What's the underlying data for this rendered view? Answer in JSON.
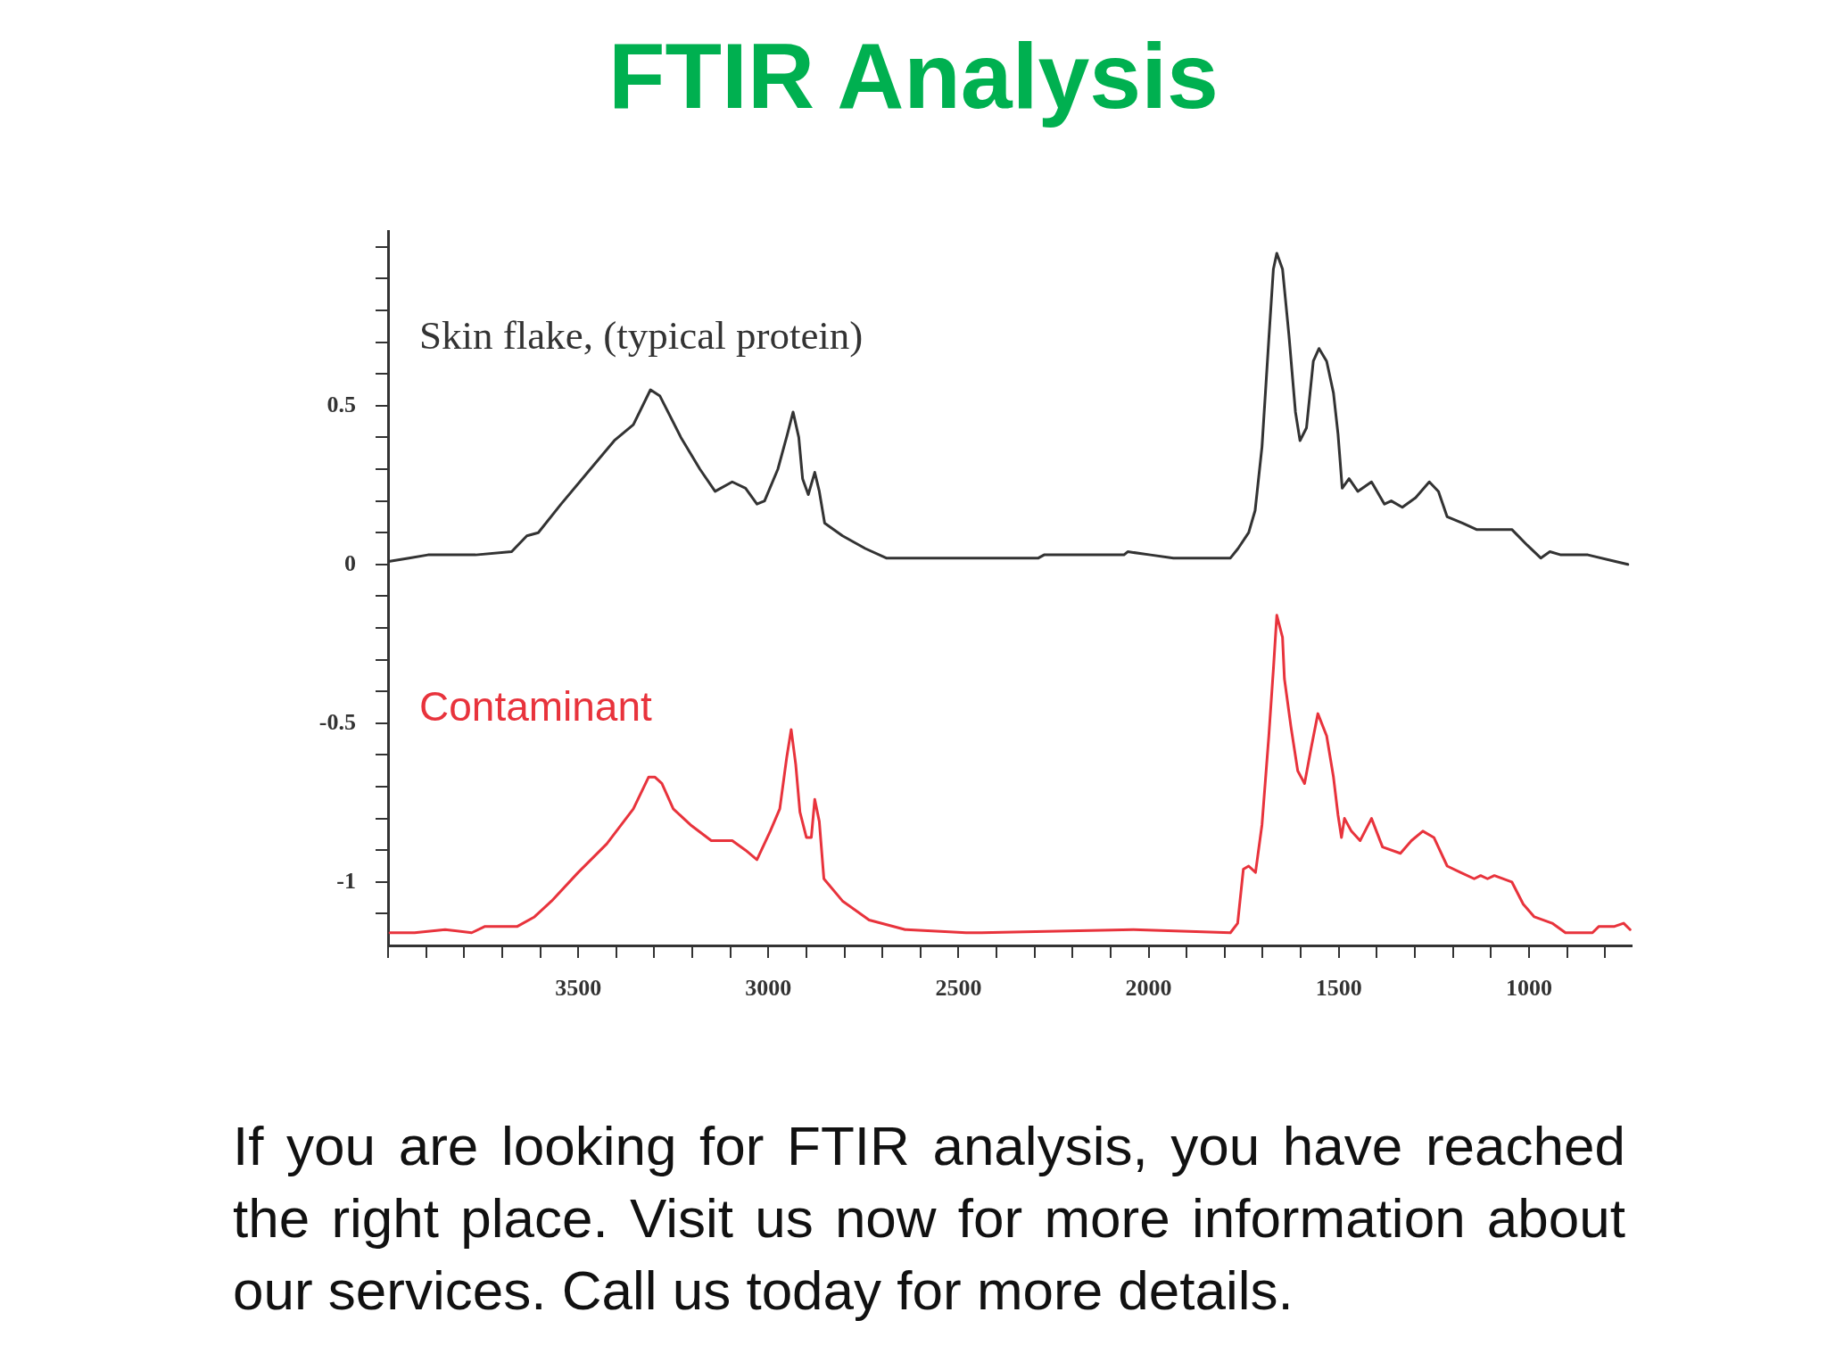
{
  "chart_data": {
    "type": "line",
    "title": "FTIR Analysis",
    "annotations": [
      "If you are looking for FTIR analysis, you have reached the right place. Visit us now for more information about our services. Call us today for more details."
    ],
    "xlim": [
      4000,
      730
    ],
    "ylim": [
      -1.2,
      1.05
    ],
    "xticks": [
      {
        "value": 4000,
        "label": null
      },
      {
        "value": 3900,
        "label": null
      },
      {
        "value": 3800,
        "label": null
      },
      {
        "value": 3700,
        "label": null
      },
      {
        "value": 3600,
        "label": null
      },
      3500,
      {
        "value": 3400,
        "label": null
      },
      {
        "value": 3300,
        "label": null
      },
      {
        "value": 3200,
        "label": null
      },
      {
        "value": 3100,
        "label": null
      },
      3000,
      {
        "value": 2900,
        "label": null
      },
      {
        "value": 2800,
        "label": null
      },
      {
        "value": 2700,
        "label": null
      },
      {
        "value": 2600,
        "label": null
      },
      2500,
      {
        "value": 2400,
        "label": null
      },
      {
        "value": 2300,
        "label": null
      },
      {
        "value": 2200,
        "label": null
      },
      {
        "value": 2100,
        "label": null
      },
      2000,
      {
        "value": 1900,
        "label": null
      },
      {
        "value": 1800,
        "label": null
      },
      {
        "value": 1700,
        "label": null
      },
      {
        "value": 1600,
        "label": null
      },
      1500,
      {
        "value": 1400,
        "label": null
      },
      {
        "value": 1300,
        "label": null
      },
      {
        "value": 1200,
        "label": null
      },
      {
        "value": 1100,
        "label": null
      },
      1000,
      {
        "value": 900,
        "label": null
      },
      {
        "value": 800,
        "label": null
      }
    ],
    "yticks": [
      {
        "value": 1,
        "label": null
      },
      {
        "value": 0.9,
        "label": null
      },
      {
        "value": 0.8,
        "label": null
      },
      {
        "value": 0.7,
        "label": null
      },
      {
        "value": 0.6,
        "label": null
      },
      0.5,
      {
        "value": 0.4,
        "label": null
      },
      {
        "value": 0.3,
        "label": null
      },
      {
        "value": 0.2,
        "label": null
      },
      {
        "value": 0.1,
        "label": null
      },
      0,
      {
        "value": -0.1,
        "label": null
      },
      {
        "value": -0.2,
        "label": null
      },
      {
        "value": -0.3,
        "label": null
      },
      {
        "value": -0.4,
        "label": null
      },
      -0.5,
      {
        "value": -0.6,
        "label": null
      },
      {
        "value": -0.7,
        "label": null
      },
      {
        "value": -0.8,
        "label": null
      },
      {
        "value": -0.9,
        "label": null
      },
      -1,
      {
        "value": -1.1,
        "label": null
      }
    ],
    "marker": "none",
    "line_style": "solid",
    "series": [
      {
        "name": "Skin flake, (typical protein)",
        "color": "#333333",
        "x": [
          3995,
          3945,
          3895,
          3825,
          3770,
          3675,
          3635,
          3605,
          3545,
          3475,
          3405,
          3355,
          3310,
          3285,
          3230,
          3180,
          3140,
          3095,
          3060,
          3030,
          3010,
          2975,
          2950,
          2935,
          2920,
          2910,
          2895,
          2878,
          2866,
          2852,
          2805,
          2745,
          2690,
          2480,
          2290,
          2275,
          2065,
          2055,
          1995,
          1935,
          1785,
          1765,
          1737,
          1720,
          1702,
          1684,
          1672,
          1663,
          1648,
          1631,
          1614,
          1602,
          1585,
          1567,
          1552,
          1532,
          1514,
          1502,
          1491,
          1473,
          1450,
          1414,
          1380,
          1362,
          1333,
          1298,
          1262,
          1238,
          1215,
          1174,
          1138,
          1045,
          1004,
          969,
          945,
          916,
          845,
          775,
          740
        ],
        "values": [
          0.01,
          0.02,
          0.03,
          0.03,
          0.03,
          0.04,
          0.09,
          0.1,
          0.19,
          0.29,
          0.39,
          0.44,
          0.55,
          0.53,
          0.4,
          0.3,
          0.23,
          0.26,
          0.24,
          0.19,
          0.2,
          0.3,
          0.41,
          0.48,
          0.4,
          0.27,
          0.22,
          0.29,
          0.23,
          0.13,
          0.09,
          0.05,
          0.02,
          0.02,
          0.02,
          0.03,
          0.03,
          0.04,
          0.03,
          0.02,
          0.02,
          0.05,
          0.1,
          0.17,
          0.37,
          0.71,
          0.93,
          0.98,
          0.93,
          0.72,
          0.48,
          0.39,
          0.43,
          0.64,
          0.68,
          0.64,
          0.54,
          0.41,
          0.24,
          0.27,
          0.23,
          0.26,
          0.19,
          0.2,
          0.18,
          0.21,
          0.26,
          0.23,
          0.15,
          0.13,
          0.11,
          0.11,
          0.06,
          0.02,
          0.04,
          0.03,
          0.03,
          0.01,
          0.0
        ]
      },
      {
        "name": "Contaminant",
        "color": "#e8333c",
        "x": [
          3995,
          3930,
          3850,
          3780,
          3745,
          3660,
          3615,
          3570,
          3500,
          3425,
          3355,
          3315,
          3298,
          3280,
          3250,
          3205,
          3150,
          3095,
          3060,
          3030,
          2995,
          2970,
          2952,
          2940,
          2928,
          2917,
          2900,
          2887,
          2878,
          2866,
          2854,
          2805,
          2735,
          2640,
          2480,
          2440,
          2040,
          1785,
          1766,
          1751,
          1737,
          1719,
          1702,
          1684,
          1672,
          1663,
          1648,
          1643,
          1626,
          1608,
          1590,
          1573,
          1555,
          1532,
          1514,
          1502,
          1493,
          1485,
          1467,
          1444,
          1414,
          1385,
          1338,
          1309,
          1279,
          1250,
          1215,
          1180,
          1144,
          1127,
          1109,
          1091,
          1045,
          1015,
          986,
          939,
          904,
          833,
          816,
          775,
          751,
          734
        ],
        "values": [
          -1.16,
          -1.16,
          -1.15,
          -1.16,
          -1.14,
          -1.14,
          -1.11,
          -1.06,
          -0.97,
          -0.88,
          -0.77,
          -0.67,
          -0.67,
          -0.69,
          -0.77,
          -0.82,
          -0.87,
          -0.87,
          -0.9,
          -0.93,
          -0.84,
          -0.77,
          -0.61,
          -0.52,
          -0.63,
          -0.78,
          -0.86,
          -0.86,
          -0.74,
          -0.81,
          -0.99,
          -1.06,
          -1.12,
          -1.15,
          -1.16,
          -1.16,
          -1.15,
          -1.16,
          -1.13,
          -0.96,
          -0.95,
          -0.97,
          -0.82,
          -0.54,
          -0.33,
          -0.16,
          -0.23,
          -0.36,
          -0.51,
          -0.65,
          -0.69,
          -0.58,
          -0.47,
          -0.54,
          -0.67,
          -0.79,
          -0.86,
          -0.8,
          -0.84,
          -0.87,
          -0.8,
          -0.89,
          -0.91,
          -0.87,
          -0.84,
          -0.86,
          -0.95,
          -0.97,
          -0.99,
          -0.98,
          -0.99,
          -0.98,
          -1.0,
          -1.07,
          -1.11,
          -1.13,
          -1.16,
          -1.16,
          -1.14,
          -1.14,
          -1.13,
          -1.15
        ]
      }
    ]
  }
}
